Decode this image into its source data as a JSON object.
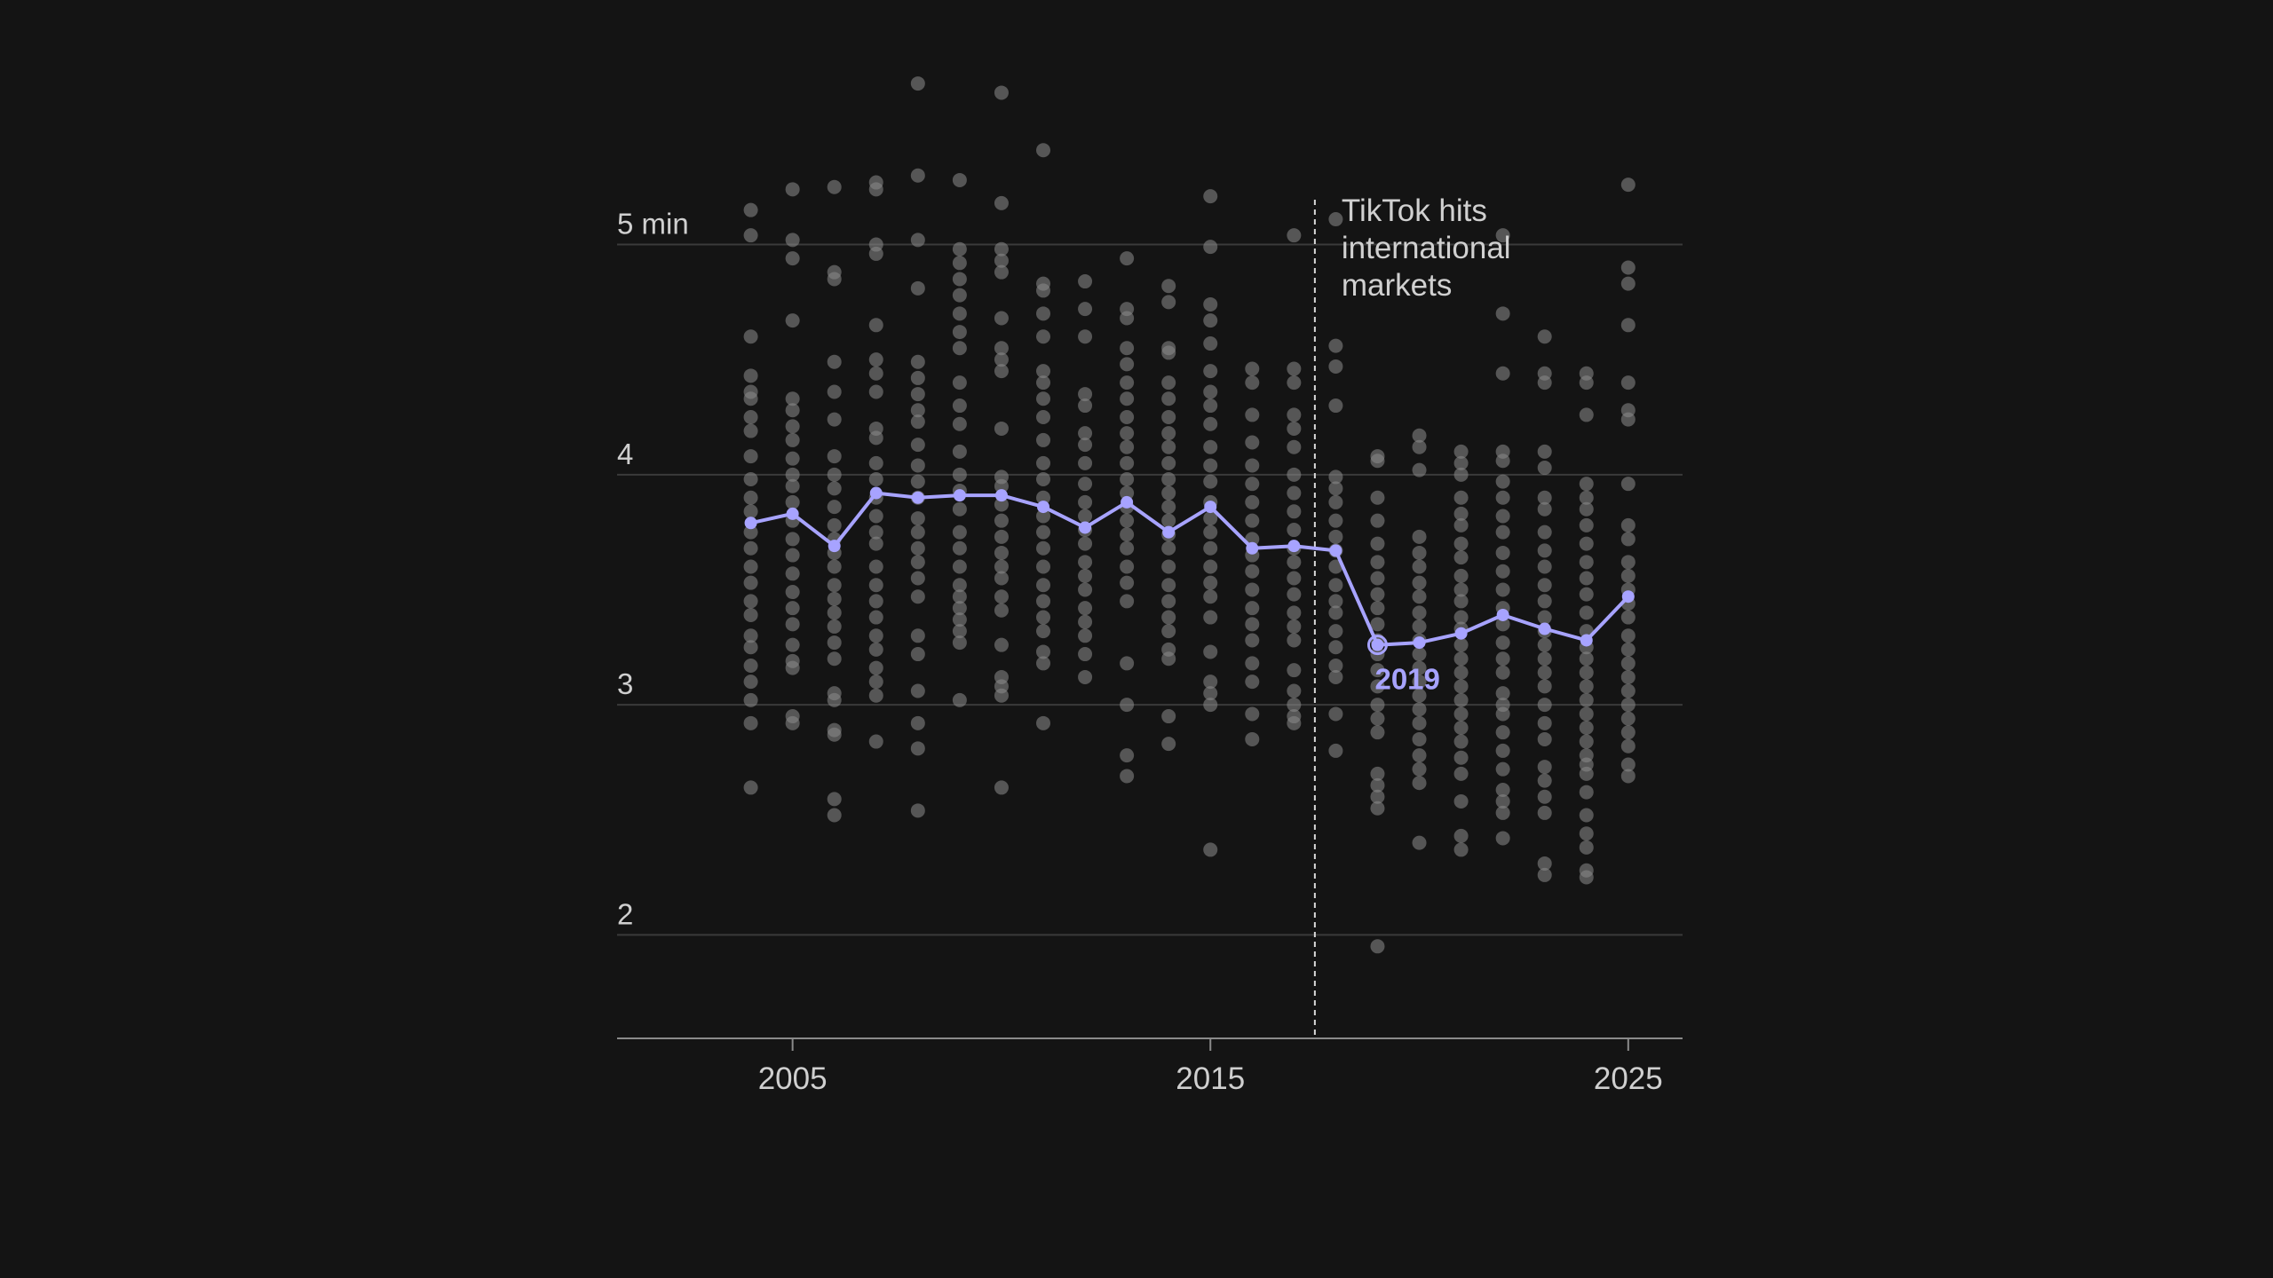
{
  "chart_data": {
    "type": "scatter",
    "title": "",
    "xlabel": "",
    "ylabel": "",
    "xlim": [
      2000.8,
      2026.3
    ],
    "ylim": [
      1.55,
      5.6
    ],
    "y_ticks": [
      {
        "value": 2,
        "label": "2"
      },
      {
        "value": 3,
        "label": "3"
      },
      {
        "value": 4,
        "label": "4"
      },
      {
        "value": 5,
        "label": "5 min"
      }
    ],
    "x_ticks": [
      {
        "value": 2005,
        "label": "2005"
      },
      {
        "value": 2015,
        "label": "2015"
      },
      {
        "value": 2025,
        "label": "2025"
      }
    ],
    "grid": true,
    "colors": {
      "background": "#141414",
      "dots": "#8c8c8c",
      "average_line": "#a7a3ff",
      "gridline": "#3a3a3a",
      "axis": "#8a8a8a"
    },
    "annotation": {
      "x": 2017.5,
      "lines": [
        "TikTok hits",
        "international",
        "markets"
      ]
    },
    "highlight": {
      "x": 2019,
      "y": 3.26,
      "label": "2019"
    },
    "average_series": {
      "name": "",
      "points": [
        {
          "x": 2004,
          "y": 3.79
        },
        {
          "x": 2005,
          "y": 3.83
        },
        {
          "x": 2006,
          "y": 3.69
        },
        {
          "x": 2007,
          "y": 3.92
        },
        {
          "x": 2008,
          "y": 3.9
        },
        {
          "x": 2009,
          "y": 3.91
        },
        {
          "x": 2010,
          "y": 3.91
        },
        {
          "x": 2011,
          "y": 3.86
        },
        {
          "x": 2012,
          "y": 3.77
        },
        {
          "x": 2013,
          "y": 3.88
        },
        {
          "x": 2014,
          "y": 3.75
        },
        {
          "x": 2015,
          "y": 3.86
        },
        {
          "x": 2016,
          "y": 3.68
        },
        {
          "x": 2017,
          "y": 3.69
        },
        {
          "x": 2018,
          "y": 3.67
        },
        {
          "x": 2019,
          "y": 3.26
        },
        {
          "x": 2020,
          "y": 3.27
        },
        {
          "x": 2021,
          "y": 3.31
        },
        {
          "x": 2022,
          "y": 3.39
        },
        {
          "x": 2023,
          "y": 3.33
        },
        {
          "x": 2024,
          "y": 3.28
        },
        {
          "x": 2025,
          "y": 3.47
        }
      ]
    },
    "songs": [
      {
        "year": 2004,
        "durations": [
          5.15,
          5.04,
          4.6,
          4.43,
          4.36,
          4.33,
          4.25,
          4.19,
          4.08,
          3.98,
          3.9,
          3.84,
          3.75,
          3.68,
          3.6,
          3.53,
          3.45,
          3.39,
          3.3,
          3.25,
          3.17,
          3.1,
          3.02,
          2.92,
          2.64
        ]
      },
      {
        "year": 2005,
        "durations": [
          5.24,
          5.02,
          4.94,
          4.67,
          4.33,
          4.28,
          4.21,
          4.15,
          4.07,
          4.0,
          3.95,
          3.88,
          3.8,
          3.72,
          3.65,
          3.57,
          3.49,
          3.42,
          3.35,
          3.26,
          3.19,
          3.16,
          2.95,
          2.92
        ]
      },
      {
        "year": 2006,
        "durations": [
          5.25,
          4.88,
          4.85,
          4.49,
          4.36,
          4.24,
          4.08,
          4.0,
          3.94,
          3.86,
          3.78,
          3.72,
          3.66,
          3.6,
          3.52,
          3.46,
          3.4,
          3.34,
          3.27,
          3.2,
          3.05,
          3.02,
          2.89,
          2.87,
          2.59,
          2.52
        ]
      },
      {
        "year": 2007,
        "durations": [
          5.27,
          5.24,
          5.0,
          4.96,
          4.65,
          4.5,
          4.44,
          4.36,
          4.2,
          4.16,
          4.05,
          3.98,
          3.9,
          3.82,
          3.75,
          3.7,
          3.6,
          3.52,
          3.45,
          3.38,
          3.3,
          3.24,
          3.16,
          3.1,
          3.04,
          2.84
        ]
      },
      {
        "year": 2008,
        "durations": [
          5.7,
          5.3,
          5.02,
          4.81,
          4.49,
          4.42,
          4.35,
          4.28,
          4.23,
          4.13,
          4.04,
          3.97,
          3.9,
          3.81,
          3.75,
          3.68,
          3.62,
          3.55,
          3.47,
          3.3,
          3.22,
          3.06,
          2.92,
          2.81,
          2.54
        ]
      },
      {
        "year": 2009,
        "durations": [
          5.28,
          4.98,
          4.92,
          4.85,
          4.78,
          4.7,
          4.62,
          4.55,
          4.4,
          4.3,
          4.22,
          4.1,
          4.0,
          3.93,
          3.85,
          3.75,
          3.68,
          3.6,
          3.52,
          3.47,
          3.42,
          3.37,
          3.32,
          3.27,
          3.02
        ]
      },
      {
        "year": 2010,
        "durations": [
          5.66,
          5.18,
          4.98,
          4.93,
          4.88,
          4.68,
          4.55,
          4.5,
          4.45,
          4.2,
          3.99,
          3.95,
          3.87,
          3.8,
          3.73,
          3.66,
          3.6,
          3.55,
          3.47,
          3.41,
          3.26,
          3.12,
          3.08,
          3.04,
          2.64
        ]
      },
      {
        "year": 2011,
        "durations": [
          5.41,
          4.83,
          4.8,
          4.7,
          4.6,
          4.45,
          4.4,
          4.33,
          4.25,
          4.15,
          4.05,
          3.98,
          3.9,
          3.82,
          3.75,
          3.68,
          3.6,
          3.52,
          3.45,
          3.38,
          3.32,
          3.23,
          3.18,
          2.92
        ]
      },
      {
        "year": 2012,
        "durations": [
          4.84,
          4.72,
          4.6,
          4.35,
          4.3,
          4.18,
          4.13,
          4.05,
          3.96,
          3.88,
          3.82,
          3.76,
          3.7,
          3.62,
          3.56,
          3.5,
          3.42,
          3.36,
          3.3,
          3.22,
          3.12
        ]
      },
      {
        "year": 2013,
        "durations": [
          4.94,
          4.72,
          4.68,
          4.55,
          4.48,
          4.4,
          4.33,
          4.25,
          4.18,
          4.12,
          4.05,
          3.98,
          3.92,
          3.86,
          3.8,
          3.74,
          3.68,
          3.6,
          3.53,
          3.45,
          3.18,
          3.0,
          2.78,
          2.69
        ]
      },
      {
        "year": 2014,
        "durations": [
          4.82,
          4.75,
          4.55,
          4.53,
          4.4,
          4.33,
          4.25,
          4.18,
          4.12,
          4.05,
          3.98,
          3.92,
          3.86,
          3.8,
          3.74,
          3.68,
          3.6,
          3.52,
          3.45,
          3.38,
          3.32,
          3.24,
          3.2,
          2.95,
          2.83
        ]
      },
      {
        "year": 2015,
        "durations": [
          5.21,
          4.99,
          4.74,
          4.67,
          4.57,
          4.45,
          4.36,
          4.3,
          4.22,
          4.12,
          4.04,
          3.97,
          3.88,
          3.81,
          3.75,
          3.68,
          3.6,
          3.53,
          3.47,
          3.38,
          3.23,
          3.1,
          3.05,
          3.0,
          2.37
        ]
      },
      {
        "year": 2016,
        "durations": [
          4.46,
          4.4,
          4.26,
          4.14,
          4.04,
          3.96,
          3.88,
          3.8,
          3.72,
          3.65,
          3.58,
          3.5,
          3.42,
          3.35,
          3.28,
          3.18,
          3.1,
          2.96,
          2.85
        ]
      },
      {
        "year": 2017,
        "durations": [
          5.04,
          4.46,
          4.4,
          4.26,
          4.2,
          4.12,
          4.0,
          3.92,
          3.84,
          3.76,
          3.68,
          3.62,
          3.55,
          3.48,
          3.4,
          3.34,
          3.28,
          3.15,
          3.06,
          3.0,
          2.95,
          2.92
        ]
      },
      {
        "year": 2018,
        "durations": [
          5.11,
          4.56,
          4.47,
          4.3,
          3.99,
          3.94,
          3.88,
          3.8,
          3.73,
          3.67,
          3.6,
          3.52,
          3.45,
          3.4,
          3.32,
          3.25,
          3.17,
          3.12,
          2.96,
          2.8
        ]
      },
      {
        "year": 2019,
        "durations": [
          4.08,
          4.06,
          3.9,
          3.8,
          3.7,
          3.62,
          3.55,
          3.48,
          3.42,
          3.35,
          3.28,
          3.22,
          3.15,
          3.08,
          3.0,
          2.94,
          2.88,
          2.7,
          2.65,
          2.6,
          2.55,
          1.95
        ]
      },
      {
        "year": 2020,
        "durations": [
          4.17,
          4.12,
          4.02,
          3.73,
          3.66,
          3.6,
          3.53,
          3.47,
          3.4,
          3.34,
          3.28,
          3.22,
          3.16,
          3.1,
          3.04,
          2.98,
          2.92,
          2.85,
          2.78,
          2.72,
          2.66,
          2.4
        ]
      },
      {
        "year": 2021,
        "durations": [
          4.1,
          4.05,
          4.0,
          3.9,
          3.83,
          3.78,
          3.7,
          3.64,
          3.56,
          3.5,
          3.45,
          3.38,
          3.33,
          3.26,
          3.2,
          3.14,
          3.08,
          3.02,
          2.96,
          2.9,
          2.84,
          2.77,
          2.7,
          2.58,
          2.43,
          2.37
        ]
      },
      {
        "year": 2022,
        "durations": [
          5.04,
          4.7,
          4.44,
          4.1,
          4.06,
          3.97,
          3.9,
          3.82,
          3.75,
          3.66,
          3.58,
          3.5,
          3.42,
          3.35,
          3.27,
          3.2,
          3.14,
          3.05,
          3.0,
          2.96,
          2.88,
          2.8,
          2.72,
          2.63,
          2.58,
          2.53,
          2.42
        ]
      },
      {
        "year": 2023,
        "durations": [
          4.6,
          4.44,
          4.4,
          4.1,
          4.03,
          3.9,
          3.85,
          3.75,
          3.67,
          3.6,
          3.52,
          3.45,
          3.38,
          3.32,
          3.26,
          3.2,
          3.14,
          3.08,
          3.0,
          2.92,
          2.85,
          2.73,
          2.67,
          2.6,
          2.53,
          2.31,
          2.26
        ]
      },
      {
        "year": 2024,
        "durations": [
          4.44,
          4.4,
          4.26,
          3.96,
          3.9,
          3.85,
          3.78,
          3.7,
          3.62,
          3.55,
          3.48,
          3.4,
          3.32,
          3.25,
          3.2,
          3.14,
          3.08,
          3.02,
          2.96,
          2.9,
          2.84,
          2.78,
          2.74,
          2.7,
          2.62,
          2.52,
          2.44,
          2.38,
          2.28,
          2.25
        ]
      },
      {
        "year": 2025,
        "durations": [
          5.26,
          4.9,
          4.83,
          4.65,
          4.4,
          4.28,
          4.24,
          3.96,
          3.78,
          3.72,
          3.62,
          3.56,
          3.5,
          3.44,
          3.38,
          3.3,
          3.24,
          3.18,
          3.12,
          3.06,
          3.0,
          2.94,
          2.88,
          2.82,
          2.74,
          2.69
        ]
      }
    ]
  }
}
